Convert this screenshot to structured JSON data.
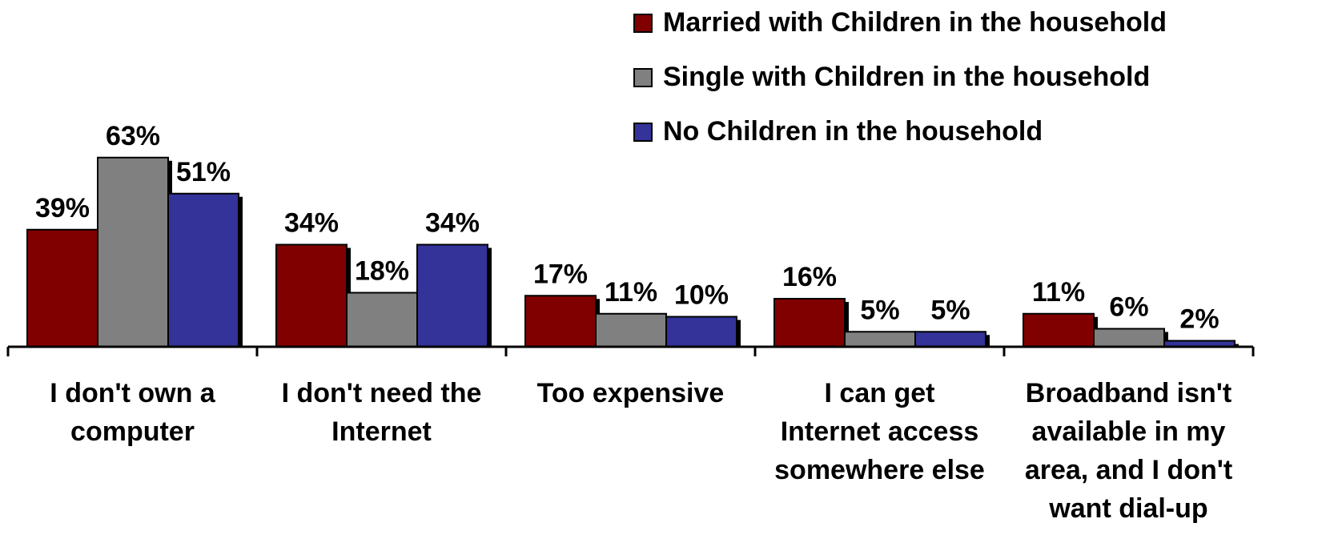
{
  "chart_data": {
    "type": "bar",
    "categories": [
      [
        "I don't own a",
        "computer"
      ],
      [
        "I don't need the",
        "Internet"
      ],
      [
        "Too expensive"
      ],
      [
        "I can get",
        "Internet access",
        "somewhere else"
      ],
      [
        "Broadband isn't",
        "available in my",
        "area, and I don't",
        "want dial-up"
      ]
    ],
    "series": [
      {
        "name": "Married with Children in the household",
        "color": "#800000",
        "values": [
          39,
          34,
          17,
          16,
          11
        ],
        "labels": [
          "39%",
          "34%",
          "17%",
          "16%",
          "11%"
        ]
      },
      {
        "name": "Single with Children in the household",
        "color": "#808080",
        "values": [
          63,
          18,
          11,
          5,
          6
        ],
        "labels": [
          "63%",
          "18%",
          "11%",
          "5%",
          "6%"
        ]
      },
      {
        "name": "No Children in the household",
        "color": "#333399",
        "values": [
          51,
          34,
          10,
          5,
          2
        ],
        "labels": [
          "51%",
          "34%",
          "10%",
          "5%",
          "2%"
        ]
      }
    ],
    "ylim": [
      0,
      70
    ],
    "grid": false,
    "legend_position": "top-right"
  }
}
